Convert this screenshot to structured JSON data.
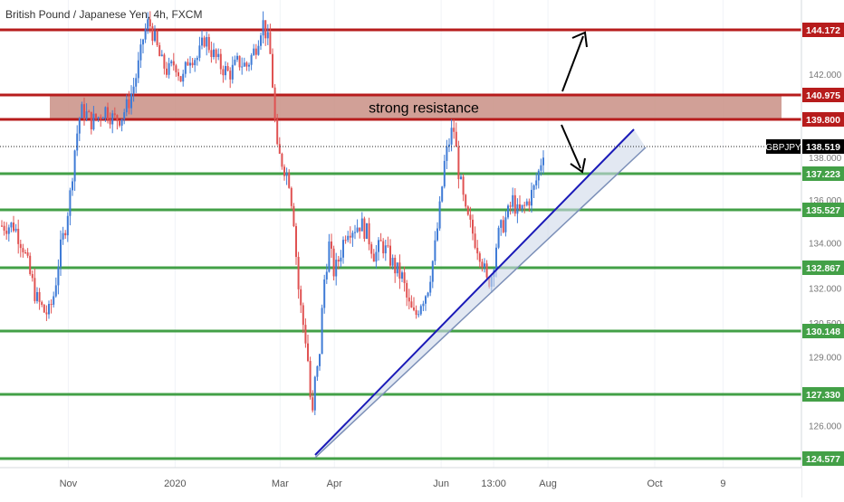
{
  "header": {
    "title": "British Pound / Japanese Yen, 4h, FXCM"
  },
  "chart_data": {
    "type": "candlestick",
    "symbol": "GBPJPY",
    "title": "British Pound / Japanese Yen, 4h, FXCM",
    "last_price": 138.519,
    "x_ticks": [
      "Nov",
      "2020",
      "Mar",
      "Apr",
      "Jun",
      "13:00",
      "Aug",
      "Oct",
      "9"
    ],
    "y_ticks": [
      126.0,
      129.0,
      130.5,
      132.0,
      134.0,
      136.0,
      138.0,
      142.0
    ],
    "horizontal_levels": [
      {
        "value": 144.172,
        "label": "144.172",
        "color": "#b71c1c"
      },
      {
        "value": 140.975,
        "label": "140.975",
        "color": "#b71c1c"
      },
      {
        "value": 139.8,
        "label": "139.800",
        "color": "#b71c1c"
      },
      {
        "value": 137.223,
        "label": "137.223",
        "color": "#43a047"
      },
      {
        "value": 135.527,
        "label": "135.527",
        "color": "#43a047"
      },
      {
        "value": 132.867,
        "label": "132.867",
        "color": "#43a047"
      },
      {
        "value": 130.148,
        "label": "130.148",
        "color": "#43a047"
      },
      {
        "value": 127.33,
        "label": "127.330",
        "color": "#43a047"
      },
      {
        "value": 124.577,
        "label": "124.577",
        "color": "#43a047"
      }
    ],
    "resistance_zone": {
      "from": 139.8,
      "to": 140.975,
      "label": "strong resistance",
      "color": "#c98f85"
    },
    "series_path": [
      [
        "2019-10-01",
        134.8
      ],
      [
        "2019-10-06",
        133.9
      ],
      [
        "2019-10-10",
        132.6
      ],
      [
        "2019-10-14",
        131.5
      ],
      [
        "2019-10-18",
        131.0
      ],
      [
        "2019-10-21",
        130.9
      ],
      [
        "2019-10-24",
        131.8
      ],
      [
        "2019-10-27",
        133.5
      ],
      [
        "2019-10-30",
        134.6
      ],
      [
        "2019-11-02",
        136.2
      ],
      [
        "2019-11-05",
        138.6
      ],
      [
        "2019-11-08",
        140.2
      ],
      [
        "2019-11-11",
        140.1
      ],
      [
        "2019-11-14",
        139.7
      ],
      [
        "2019-11-18",
        139.9
      ],
      [
        "2019-11-22",
        140.3
      ],
      [
        "2019-11-27",
        139.8
      ],
      [
        "2019-12-01",
        139.9
      ],
      [
        "2019-12-05",
        140.5
      ],
      [
        "2019-12-09",
        141.6
      ],
      [
        "2019-12-12",
        142.8
      ],
      [
        "2019-12-14",
        143.9
      ],
      [
        "2019-12-17",
        144.6
      ],
      [
        "2019-12-20",
        143.8
      ],
      [
        "2019-12-24",
        142.6
      ],
      [
        "2019-12-28",
        142.1
      ],
      [
        "2020-01-01",
        142.6
      ],
      [
        "2020-01-05",
        141.6
      ],
      [
        "2020-01-09",
        142.9
      ],
      [
        "2020-01-14",
        142.8
      ],
      [
        "2020-01-18",
        143.8
      ],
      [
        "2020-01-22",
        143.1
      ],
      [
        "2020-01-27",
        142.4
      ],
      [
        "2020-02-01",
        142.0
      ],
      [
        "2020-02-06",
        142.6
      ],
      [
        "2020-02-11",
        142.4
      ],
      [
        "2020-02-16",
        143.3
      ],
      [
        "2020-02-20",
        144.6
      ],
      [
        "2020-02-24",
        143.3
      ],
      [
        "2020-02-26",
        141.2
      ],
      [
        "2020-02-28",
        138.3
      ],
      [
        "2020-03-02",
        137.8
      ],
      [
        "2020-03-06",
        137.0
      ],
      [
        "2020-03-09",
        135.0
      ],
      [
        "2020-03-11",
        132.3
      ],
      [
        "2020-03-13",
        131.0
      ],
      [
        "2020-03-16",
        129.6
      ],
      [
        "2020-03-18",
        127.9
      ],
      [
        "2020-03-19",
        124.8
      ],
      [
        "2020-03-20",
        127.6
      ],
      [
        "2020-03-23",
        128.6
      ],
      [
        "2020-03-26",
        132.2
      ],
      [
        "2020-03-29",
        133.9
      ],
      [
        "2020-04-01",
        132.6
      ],
      [
        "2020-04-04",
        133.4
      ],
      [
        "2020-04-08",
        134.7
      ],
      [
        "2020-04-12",
        134.7
      ],
      [
        "2020-04-16",
        134.9
      ],
      [
        "2020-04-20",
        134.4
      ],
      [
        "2020-04-24",
        133.4
      ],
      [
        "2020-04-28",
        134.0
      ],
      [
        "2020-05-02",
        133.4
      ],
      [
        "2020-05-06",
        132.8
      ],
      [
        "2020-05-10",
        132.4
      ],
      [
        "2020-05-13",
        131.3
      ],
      [
        "2020-05-17",
        130.7
      ],
      [
        "2020-05-20",
        131.4
      ],
      [
        "2020-05-24",
        131.9
      ],
      [
        "2020-05-28",
        133.5
      ],
      [
        "2020-05-31",
        135.4
      ],
      [
        "2020-06-03",
        137.8
      ],
      [
        "2020-06-06",
        138.9
      ],
      [
        "2020-06-08",
        139.5
      ],
      [
        "2020-06-11",
        137.3
      ],
      [
        "2020-06-15",
        135.3
      ],
      [
        "2020-06-18",
        134.7
      ],
      [
        "2020-06-21",
        134.0
      ],
      [
        "2020-06-24",
        133.4
      ],
      [
        "2020-06-27",
        132.2
      ],
      [
        "2020-06-30",
        132.6
      ],
      [
        "2020-07-03",
        134.2
      ],
      [
        "2020-07-06",
        134.8
      ],
      [
        "2020-07-09",
        135.3
      ],
      [
        "2020-07-12",
        136.0
      ],
      [
        "2020-07-15",
        135.3
      ],
      [
        "2020-07-18",
        135.6
      ],
      [
        "2020-07-21",
        136.0
      ],
      [
        "2020-07-24",
        136.5
      ],
      [
        "2020-07-27",
        137.4
      ],
      [
        "2020-07-30",
        138.6
      ]
    ]
  },
  "annotations": {
    "resistance_label": "strong resistance",
    "symbol_tag": "GBPJPY",
    "last_price_label": "138.519"
  },
  "colors": {
    "candle_up": "#3f7bd6",
    "candle_down": "#e05252",
    "resistance_line": "#b71c1c",
    "support_line": "#43a047",
    "trendline": "#1a1ab8",
    "channel_fill": "#cfd8ea"
  }
}
